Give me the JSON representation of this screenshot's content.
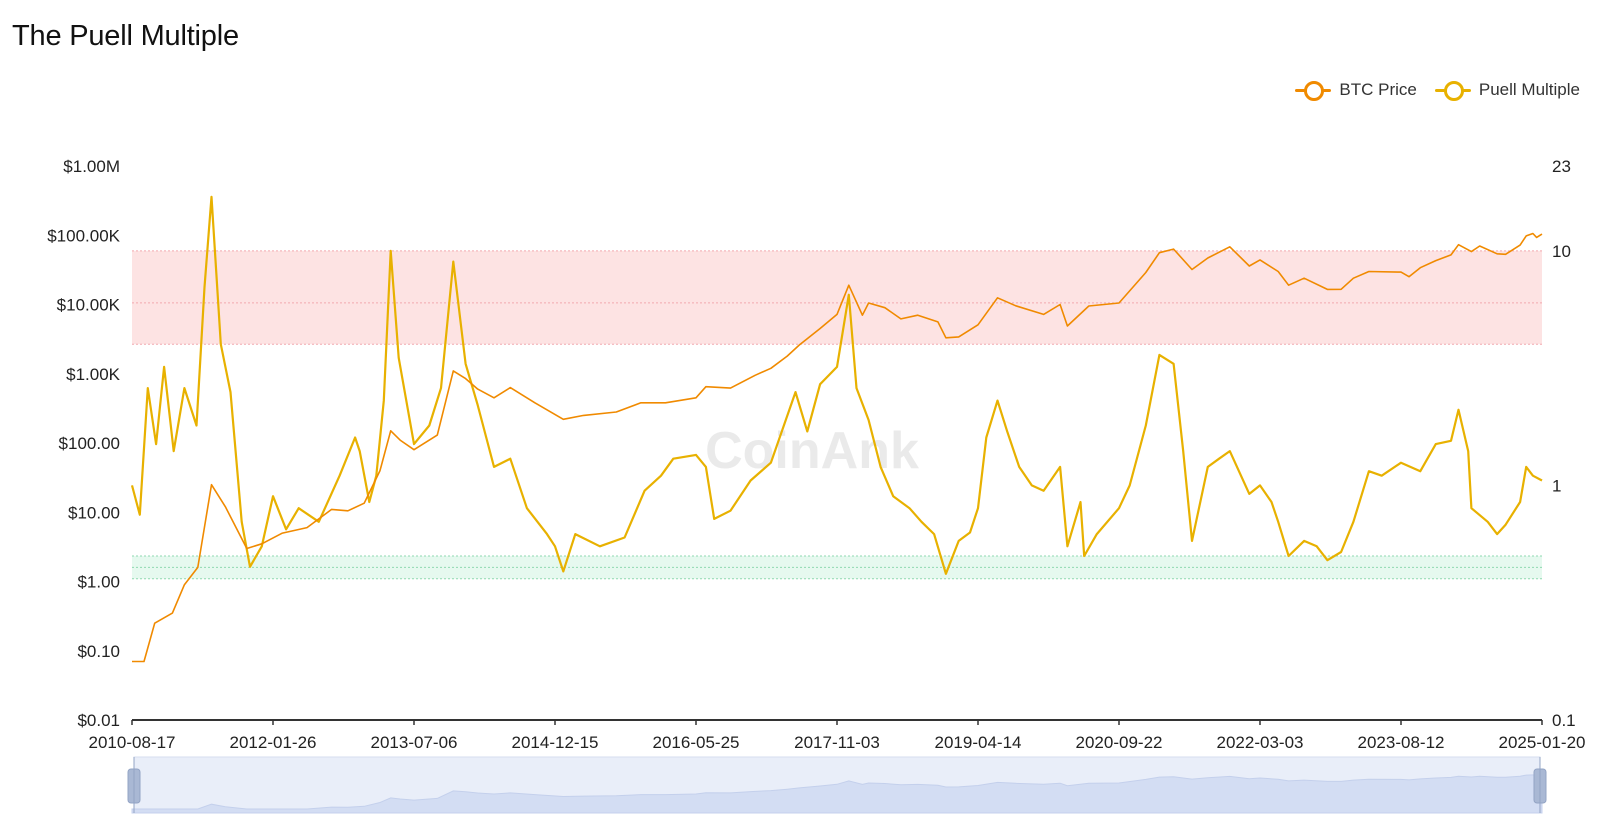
{
  "title": "The Puell Multiple",
  "legend": [
    {
      "label": "BTC Price",
      "color": "#F08A00"
    },
    {
      "label": "Puell Multiple",
      "color": "#E8B100"
    }
  ],
  "watermark": "CoinAnk",
  "chart_data": {
    "type": "line",
    "title": "The Puell Multiple",
    "x_start": "2010-08-17",
    "x_end": "2025-01-20",
    "x_ticks": [
      "2010-08-17",
      "2012-01-26",
      "2013-07-06",
      "2014-12-15",
      "2016-05-25",
      "2017-11-03",
      "2019-04-14",
      "2020-09-22",
      "2022-03-03",
      "2023-08-12",
      "2025-01-20"
    ],
    "y_left": {
      "scale": "log",
      "range": [
        0.01,
        1000000
      ],
      "ticks": [
        "$0.01",
        "$0.10",
        "$1.00",
        "$10.00",
        "$100.00",
        "$1.00K",
        "$10.00K",
        "$100.00K",
        "$1.00M"
      ]
    },
    "y_right": {
      "scale": "log",
      "range": [
        0.1,
        23
      ],
      "ticks": [
        "0.1",
        "1",
        "10",
        "23"
      ]
    },
    "bands": [
      {
        "name": "overvalued",
        "axis": "right",
        "from": 4,
        "to": 10,
        "color": "#FDE3E3"
      },
      {
        "name": "undervalued",
        "axis": "right",
        "from": 0.4,
        "to": 0.5,
        "color": "#E6F9EF"
      }
    ],
    "series": [
      {
        "name": "BTC Price",
        "axis": "left",
        "color": "#F08A00",
        "points": [
          [
            "2010-08-17",
            0.07
          ],
          [
            "2010-10-01",
            0.07
          ],
          [
            "2010-11-10",
            0.25
          ],
          [
            "2011-01-15",
            0.35
          ],
          [
            "2011-03-01",
            0.9
          ],
          [
            "2011-04-20",
            1.6
          ],
          [
            "2011-06-10",
            25
          ],
          [
            "2011-08-01",
            12
          ],
          [
            "2011-10-20",
            3
          ],
          [
            "2011-12-15",
            3.5
          ],
          [
            "2012-03-01",
            5
          ],
          [
            "2012-06-01",
            6
          ],
          [
            "2012-09-01",
            11
          ],
          [
            "2012-11-01",
            10.5
          ],
          [
            "2013-01-01",
            13.5
          ],
          [
            "2013-03-01",
            40
          ],
          [
            "2013-04-10",
            150
          ],
          [
            "2013-05-15",
            110
          ],
          [
            "2013-07-06",
            80
          ],
          [
            "2013-10-01",
            130
          ],
          [
            "2013-11-30",
            1100
          ],
          [
            "2014-01-15",
            850
          ],
          [
            "2014-03-01",
            600
          ],
          [
            "2014-05-01",
            450
          ],
          [
            "2014-07-01",
            630
          ],
          [
            "2014-10-01",
            380
          ],
          [
            "2015-01-15",
            220
          ],
          [
            "2015-04-01",
            250
          ],
          [
            "2015-08-01",
            280
          ],
          [
            "2015-11-01",
            380
          ],
          [
            "2016-02-01",
            380
          ],
          [
            "2016-05-25",
            450
          ],
          [
            "2016-07-01",
            650
          ],
          [
            "2016-10-01",
            620
          ],
          [
            "2017-01-01",
            950
          ],
          [
            "2017-03-01",
            1200
          ],
          [
            "2017-05-01",
            1800
          ],
          [
            "2017-06-15",
            2600
          ],
          [
            "2017-09-01",
            4500
          ],
          [
            "2017-11-03",
            7200
          ],
          [
            "2017-12-17",
            19000
          ],
          [
            "2018-02-06",
            7000
          ],
          [
            "2018-03-01",
            10500
          ],
          [
            "2018-05-01",
            9000
          ],
          [
            "2018-06-30",
            6200
          ],
          [
            "2018-09-01",
            7000
          ],
          [
            "2018-11-15",
            5600
          ],
          [
            "2018-12-15",
            3300
          ],
          [
            "2019-02-01",
            3400
          ],
          [
            "2019-04-14",
            5100
          ],
          [
            "2019-06-26",
            12500
          ],
          [
            "2019-09-01",
            9600
          ],
          [
            "2019-12-15",
            7200
          ],
          [
            "2020-02-15",
            10000
          ],
          [
            "2020-03-13",
            4900
          ],
          [
            "2020-06-01",
            9500
          ],
          [
            "2020-09-22",
            10500
          ],
          [
            "2020-12-31",
            29000
          ],
          [
            "2021-02-20",
            56000
          ],
          [
            "2021-04-14",
            63000
          ],
          [
            "2021-06-22",
            32000
          ],
          [
            "2021-08-20",
            47000
          ],
          [
            "2021-11-10",
            68000
          ],
          [
            "2022-01-22",
            36000
          ],
          [
            "2022-03-03",
            44000
          ],
          [
            "2022-05-10",
            30000
          ],
          [
            "2022-06-18",
            19000
          ],
          [
            "2022-08-15",
            24000
          ],
          [
            "2022-11-10",
            16500
          ],
          [
            "2022-12-31",
            16600
          ],
          [
            "2023-02-15",
            24000
          ],
          [
            "2023-04-14",
            30000
          ],
          [
            "2023-08-12",
            29400
          ],
          [
            "2023-09-11",
            25200
          ],
          [
            "2023-10-23",
            34000
          ],
          [
            "2023-12-20",
            43000
          ],
          [
            "2024-02-15",
            52000
          ],
          [
            "2024-03-14",
            73000
          ],
          [
            "2024-05-01",
            58000
          ],
          [
            "2024-06-01",
            70000
          ],
          [
            "2024-08-05",
            54000
          ],
          [
            "2024-09-06",
            53000
          ],
          [
            "2024-10-30",
            72000
          ],
          [
            "2024-11-22",
            98000
          ],
          [
            "2024-12-17",
            106000
          ],
          [
            "2024-12-31",
            93000
          ],
          [
            "2025-01-20",
            104000
          ]
        ]
      },
      {
        "name": "Puell Multiple",
        "axis": "right",
        "color": "#E8B100",
        "points": [
          [
            "2010-08-17",
            1.0
          ],
          [
            "2010-09-15",
            0.75
          ],
          [
            "2010-10-15",
            2.6
          ],
          [
            "2010-11-15",
            1.5
          ],
          [
            "2010-12-15",
            3.2
          ],
          [
            "2011-01-20",
            1.4
          ],
          [
            "2011-03-01",
            2.6
          ],
          [
            "2011-04-15",
            1.8
          ],
          [
            "2011-05-15",
            7
          ],
          [
            "2011-06-10",
            17
          ],
          [
            "2011-07-15",
            4
          ],
          [
            "2011-08-20",
            2.5
          ],
          [
            "2011-10-01",
            0.7
          ],
          [
            "2011-11-01",
            0.45
          ],
          [
            "2011-12-15",
            0.55
          ],
          [
            "2012-01-26",
            0.9
          ],
          [
            "2012-03-15",
            0.65
          ],
          [
            "2012-05-01",
            0.8
          ],
          [
            "2012-07-15",
            0.7
          ],
          [
            "2012-10-01",
            1.1
          ],
          [
            "2012-11-28",
            1.6
          ],
          [
            "2012-12-15",
            1.4
          ],
          [
            "2013-01-20",
            0.85
          ],
          [
            "2013-02-15",
            1.1
          ],
          [
            "2013-03-15",
            2.3
          ],
          [
            "2013-04-10",
            10
          ],
          [
            "2013-05-10",
            3.5
          ],
          [
            "2013-07-06",
            1.5
          ],
          [
            "2013-09-01",
            1.8
          ],
          [
            "2013-10-15",
            2.6
          ],
          [
            "2013-11-30",
            9
          ],
          [
            "2014-01-15",
            3.3
          ],
          [
            "2014-03-01",
            2.2
          ],
          [
            "2014-05-01",
            1.2
          ],
          [
            "2014-07-01",
            1.3
          ],
          [
            "2014-09-01",
            0.8
          ],
          [
            "2014-11-15",
            0.62
          ],
          [
            "2014-12-15",
            0.55
          ],
          [
            "2015-01-15",
            0.43
          ],
          [
            "2015-03-01",
            0.62
          ],
          [
            "2015-06-01",
            0.55
          ],
          [
            "2015-09-01",
            0.6
          ],
          [
            "2015-11-15",
            0.95
          ],
          [
            "2016-01-15",
            1.1
          ],
          [
            "2016-03-01",
            1.3
          ],
          [
            "2016-05-25",
            1.35
          ],
          [
            "2016-07-01",
            1.2
          ],
          [
            "2016-08-01",
            0.72
          ],
          [
            "2016-10-01",
            0.78
          ],
          [
            "2016-12-15",
            1.05
          ],
          [
            "2017-03-01",
            1.25
          ],
          [
            "2017-06-01",
            2.5
          ],
          [
            "2017-07-15",
            1.7
          ],
          [
            "2017-09-01",
            2.7
          ],
          [
            "2017-11-03",
            3.2
          ],
          [
            "2017-12-17",
            6.5
          ],
          [
            "2018-01-15",
            2.6
          ],
          [
            "2018-03-01",
            1.9
          ],
          [
            "2018-04-15",
            1.2
          ],
          [
            "2018-06-01",
            0.9
          ],
          [
            "2018-08-01",
            0.8
          ],
          [
            "2018-09-15",
            0.7
          ],
          [
            "2018-11-01",
            0.62
          ],
          [
            "2018-12-15",
            0.42
          ],
          [
            "2019-02-01",
            0.58
          ],
          [
            "2019-03-15",
            0.63
          ],
          [
            "2019-04-14",
            0.8
          ],
          [
            "2019-05-15",
            1.6
          ],
          [
            "2019-06-26",
            2.3
          ],
          [
            "2019-08-01",
            1.7
          ],
          [
            "2019-09-15",
            1.2
          ],
          [
            "2019-11-01",
            1.0
          ],
          [
            "2019-12-15",
            0.95
          ],
          [
            "2020-02-15",
            1.2
          ],
          [
            "2020-03-13",
            0.55
          ],
          [
            "2020-05-01",
            0.85
          ],
          [
            "2020-05-15",
            0.5
          ],
          [
            "2020-07-01",
            0.62
          ],
          [
            "2020-09-22",
            0.8
          ],
          [
            "2020-11-01",
            1.0
          ],
          [
            "2020-12-31",
            1.8
          ],
          [
            "2021-02-20",
            3.6
          ],
          [
            "2021-04-14",
            3.3
          ],
          [
            "2021-05-20",
            1.4
          ],
          [
            "2021-06-22",
            0.58
          ],
          [
            "2021-08-20",
            1.2
          ],
          [
            "2021-10-01",
            1.3
          ],
          [
            "2021-11-10",
            1.4
          ],
          [
            "2022-01-22",
            0.92
          ],
          [
            "2022-03-03",
            1.0
          ],
          [
            "2022-04-15",
            0.85
          ],
          [
            "2022-05-10",
            0.7
          ],
          [
            "2022-06-18",
            0.5
          ],
          [
            "2022-08-15",
            0.58
          ],
          [
            "2022-10-01",
            0.55
          ],
          [
            "2022-11-10",
            0.48
          ],
          [
            "2022-12-31",
            0.52
          ],
          [
            "2023-02-15",
            0.7
          ],
          [
            "2023-04-14",
            1.15
          ],
          [
            "2023-06-01",
            1.1
          ],
          [
            "2023-08-12",
            1.25
          ],
          [
            "2023-10-23",
            1.15
          ],
          [
            "2023-12-20",
            1.5
          ],
          [
            "2024-02-15",
            1.55
          ],
          [
            "2024-03-14",
            2.1
          ],
          [
            "2024-04-19",
            1.4
          ],
          [
            "2024-05-01",
            0.8
          ],
          [
            "2024-07-01",
            0.7
          ],
          [
            "2024-08-05",
            0.62
          ],
          [
            "2024-09-06",
            0.68
          ],
          [
            "2024-10-30",
            0.85
          ],
          [
            "2024-11-22",
            1.2
          ],
          [
            "2024-12-17",
            1.1
          ],
          [
            "2025-01-20",
            1.05
          ]
        ]
      }
    ]
  }
}
